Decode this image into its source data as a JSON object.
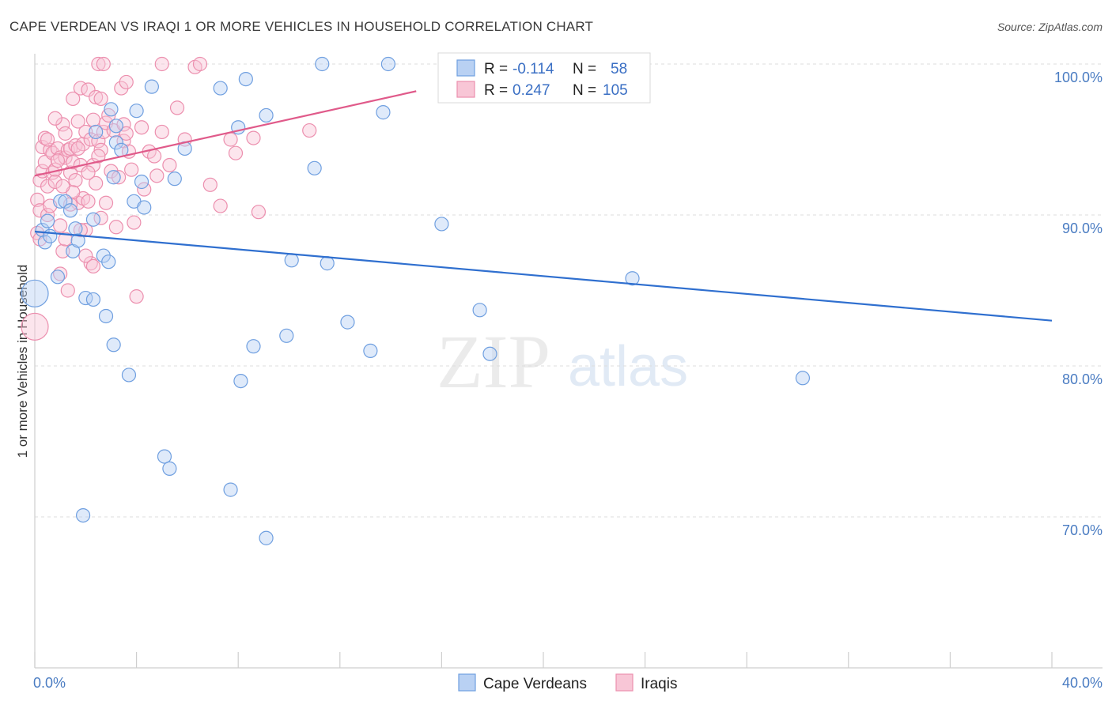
{
  "chart_data": {
    "type": "scatter",
    "title": "CAPE VERDEAN VS IRAQI 1 OR MORE VEHICLES IN HOUSEHOLD CORRELATION CHART",
    "source": "Source: ZipAtlas.com",
    "ylabel": "1 or more Vehicles in Household",
    "xlabel": "",
    "xlim": [
      0,
      40
    ],
    "ylim": [
      60.5,
      101
    ],
    "x_tick_labels": [
      "0.0%",
      "40.0%"
    ],
    "y_ticks": [
      {
        "value": 100,
        "label": "100.0%"
      },
      {
        "value": 90,
        "label": "90.0%"
      },
      {
        "value": 80,
        "label": "80.0%"
      },
      {
        "value": 70,
        "label": "70.0%"
      }
    ],
    "grid": true,
    "watermark": {
      "zip": "ZIP",
      "atlas": "atlas"
    },
    "legend_top": {
      "r_label": "R =",
      "n_label": "N =",
      "entries": [
        {
          "r": "-0.114",
          "n": "58"
        },
        {
          "r": "0.247",
          "n": "105"
        }
      ]
    },
    "series": [
      {
        "name": "Cape Verdeans",
        "color": "#6f9fe0",
        "fill": "#b9d1f3",
        "line_color": "#2f6fcf",
        "trend": {
          "x": [
            0,
            40
          ],
          "y": [
            88.9,
            83.0
          ]
        },
        "points": [
          [
            0.0,
            84.8
          ],
          [
            0.3,
            89.0
          ],
          [
            0.4,
            88.2
          ],
          [
            0.5,
            89.6
          ],
          [
            0.6,
            88.6
          ],
          [
            0.9,
            85.9
          ],
          [
            1.0,
            90.9
          ],
          [
            1.2,
            90.9
          ],
          [
            1.4,
            90.3
          ],
          [
            1.5,
            87.6
          ],
          [
            1.6,
            89.1
          ],
          [
            1.7,
            88.3
          ],
          [
            2.0,
            84.5
          ],
          [
            2.3,
            84.4
          ],
          [
            2.3,
            89.7
          ],
          [
            2.4,
            95.5
          ],
          [
            2.7,
            87.3
          ],
          [
            2.8,
            83.3
          ],
          [
            2.9,
            86.9
          ],
          [
            3.1,
            81.4
          ],
          [
            3.0,
            97.0
          ],
          [
            3.1,
            92.5
          ],
          [
            3.2,
            95.9
          ],
          [
            3.2,
            94.8
          ],
          [
            3.4,
            94.3
          ],
          [
            3.7,
            79.4
          ],
          [
            3.9,
            90.9
          ],
          [
            4.0,
            96.9
          ],
          [
            4.2,
            92.2
          ],
          [
            4.3,
            90.5
          ],
          [
            4.6,
            98.5
          ],
          [
            5.1,
            74.0
          ],
          [
            5.3,
            73.2
          ],
          [
            5.5,
            92.4
          ],
          [
            5.9,
            94.4
          ],
          [
            7.3,
            98.4
          ],
          [
            7.7,
            71.8
          ],
          [
            8.1,
            79.0
          ],
          [
            8.0,
            95.8
          ],
          [
            8.3,
            99.0
          ],
          [
            8.6,
            81.3
          ],
          [
            9.1,
            96.6
          ],
          [
            9.1,
            68.6
          ],
          [
            9.9,
            82.0
          ],
          [
            10.1,
            87.0
          ],
          [
            11.0,
            93.1
          ],
          [
            11.5,
            86.8
          ],
          [
            11.3,
            100.0
          ],
          [
            12.3,
            82.9
          ],
          [
            13.2,
            81.0
          ],
          [
            13.7,
            96.8
          ],
          [
            13.9,
            100.0
          ],
          [
            16.0,
            89.4
          ],
          [
            17.5,
            83.7
          ],
          [
            17.9,
            80.8
          ],
          [
            23.5,
            85.8
          ],
          [
            30.2,
            79.2
          ],
          [
            1.9,
            70.1
          ]
        ]
      },
      {
        "name": "Iraqis",
        "color": "#ec8fae",
        "fill": "#f8c6d6",
        "line_color": "#e05a8a",
        "trend": {
          "x": [
            0,
            15.0
          ],
          "y": [
            92.6,
            98.2
          ]
        },
        "points": [
          [
            0.0,
            82.6
          ],
          [
            0.1,
            88.8
          ],
          [
            0.1,
            91.0
          ],
          [
            0.2,
            90.3
          ],
          [
            0.2,
            92.3
          ],
          [
            0.3,
            92.9
          ],
          [
            0.3,
            94.5
          ],
          [
            0.4,
            95.1
          ],
          [
            0.4,
            93.5
          ],
          [
            0.5,
            91.9
          ],
          [
            0.5,
            90.0
          ],
          [
            0.6,
            94.3
          ],
          [
            0.7,
            92.8
          ],
          [
            0.7,
            94.1
          ],
          [
            0.8,
            93.0
          ],
          [
            0.8,
            92.2
          ],
          [
            0.9,
            94.4
          ],
          [
            1.0,
            93.8
          ],
          [
            1.0,
            89.3
          ],
          [
            1.1,
            96.0
          ],
          [
            1.1,
            87.6
          ],
          [
            1.2,
            95.4
          ],
          [
            1.2,
            93.8
          ],
          [
            1.3,
            94.3
          ],
          [
            1.3,
            85.0
          ],
          [
            1.4,
            92.8
          ],
          [
            1.4,
            94.4
          ],
          [
            1.5,
            97.7
          ],
          [
            1.5,
            93.5
          ],
          [
            1.6,
            94.6
          ],
          [
            1.6,
            92.3
          ],
          [
            1.7,
            96.2
          ],
          [
            1.7,
            90.8
          ],
          [
            1.8,
            93.3
          ],
          [
            1.8,
            98.4
          ],
          [
            1.9,
            94.7
          ],
          [
            1.9,
            91.1
          ],
          [
            2.0,
            95.5
          ],
          [
            2.0,
            89.0
          ],
          [
            2.1,
            90.9
          ],
          [
            2.1,
            98.3
          ],
          [
            2.2,
            86.8
          ],
          [
            2.2,
            95.0
          ],
          [
            2.3,
            96.3
          ],
          [
            2.3,
            93.3
          ],
          [
            2.4,
            97.8
          ],
          [
            2.4,
            92.1
          ],
          [
            2.5,
            100.0
          ],
          [
            2.5,
            94.9
          ],
          [
            2.6,
            97.7
          ],
          [
            2.6,
            89.8
          ],
          [
            2.7,
            95.5
          ],
          [
            2.7,
            100.0
          ],
          [
            2.8,
            96.1
          ],
          [
            2.8,
            90.8
          ],
          [
            3.0,
            92.9
          ],
          [
            3.1,
            95.6
          ],
          [
            3.3,
            92.5
          ],
          [
            3.4,
            98.4
          ],
          [
            3.5,
            96.0
          ],
          [
            3.5,
            94.9
          ],
          [
            3.6,
            98.8
          ],
          [
            3.7,
            94.2
          ],
          [
            3.8,
            93.0
          ],
          [
            3.9,
            89.5
          ],
          [
            4.0,
            84.6
          ],
          [
            4.2,
            95.8
          ],
          [
            4.3,
            91.7
          ],
          [
            4.5,
            94.2
          ],
          [
            4.7,
            93.9
          ],
          [
            4.8,
            92.6
          ],
          [
            5.0,
            95.5
          ],
          [
            5.0,
            100.0
          ],
          [
            5.3,
            93.3
          ],
          [
            5.6,
            97.1
          ],
          [
            5.9,
            95.0
          ],
          [
            6.3,
            99.8
          ],
          [
            6.5,
            100.0
          ],
          [
            6.9,
            92.0
          ],
          [
            7.3,
            90.6
          ],
          [
            7.7,
            95.0
          ],
          [
            7.9,
            94.1
          ],
          [
            8.6,
            95.1
          ],
          [
            8.8,
            90.2
          ],
          [
            10.8,
            95.6
          ],
          [
            0.2,
            88.4
          ],
          [
            0.5,
            95.0
          ],
          [
            0.9,
            93.6
          ],
          [
            1.2,
            88.4
          ],
          [
            1.5,
            91.5
          ],
          [
            1.8,
            89.0
          ],
          [
            2.0,
            87.3
          ],
          [
            2.3,
            86.6
          ],
          [
            2.6,
            94.3
          ],
          [
            2.9,
            96.6
          ],
          [
            3.2,
            89.2
          ],
          [
            0.6,
            90.6
          ],
          [
            1.1,
            91.9
          ],
          [
            1.4,
            90.7
          ],
          [
            2.5,
            93.9
          ],
          [
            3.6,
            95.4
          ],
          [
            1.0,
            86.1
          ],
          [
            0.8,
            96.4
          ],
          [
            2.1,
            92.8
          ],
          [
            1.7,
            94.4
          ]
        ]
      }
    ]
  }
}
